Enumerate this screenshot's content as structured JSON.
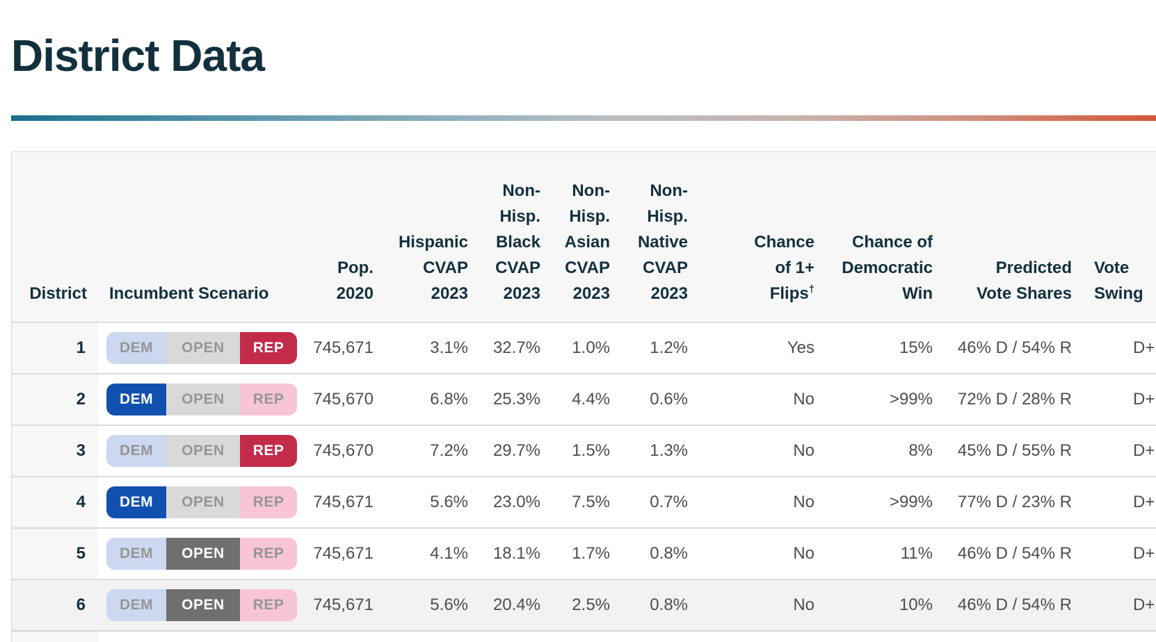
{
  "page": {
    "title": "District Data"
  },
  "colors": {
    "heading_navy": "#13303d",
    "body_text_gray": "#4d4d4d",
    "gradient_left_teal": "#1b6f8d",
    "gradient_right_red": "#d25738",
    "dem_active_blue": "#1150ae",
    "dem_inactive_lavender": "#ccd7f0",
    "open_active_gray": "#6f6f6f",
    "open_inactive_gray": "#d9d9d9",
    "rep_active_crimson": "#c32b4b",
    "rep_inactive_pink": "#f8c5d5",
    "header_background": "#f7f7f7",
    "highlight_row_background": "#f2f2f2"
  },
  "table": {
    "badge_labels": {
      "dem": "DEM",
      "open": "OPEN",
      "rep": "REP"
    },
    "columns": [
      {
        "id": "district",
        "label": "District",
        "lines": [
          "District"
        ],
        "align": "right"
      },
      {
        "id": "incumbent",
        "label": "Incumbent Scenario",
        "lines": [
          "Incumbent Scenario"
        ],
        "align": "left"
      },
      {
        "id": "pop",
        "label": "Pop. 2020",
        "lines": [
          "Pop.",
          "2020"
        ],
        "align": "right"
      },
      {
        "id": "hisp",
        "label": "Hispanic CVAP 2023",
        "lines": [
          "Hispanic",
          "CVAP",
          "2023"
        ],
        "align": "right"
      },
      {
        "id": "black",
        "label": "Non-Hisp. Black CVAP 2023",
        "lines": [
          "Non-",
          "Hisp.",
          "Black",
          "CVAP",
          "2023"
        ],
        "align": "right"
      },
      {
        "id": "asian",
        "label": "Non-Hisp. Asian CVAP 2023",
        "lines": [
          "Non-",
          "Hisp.",
          "Asian",
          "CVAP",
          "2023"
        ],
        "align": "right"
      },
      {
        "id": "native",
        "label": "Non-Hisp. Native CVAP 2023",
        "lines": [
          "Non-",
          "Hisp.",
          "Native",
          "CVAP",
          "2023"
        ],
        "align": "right"
      },
      {
        "id": "flips",
        "label": "Chance of 1+ Flips†",
        "lines": [
          "Chance",
          "of 1+",
          "Flips†"
        ],
        "align": "right"
      },
      {
        "id": "demwin",
        "label": "Chance of Democratic Win",
        "lines": [
          "Chance of",
          "Democratic",
          "Win"
        ],
        "align": "right"
      },
      {
        "id": "shares",
        "label": "Predicted Vote Shares",
        "lines": [
          "Predicted",
          "Vote Shares"
        ],
        "align": "right"
      },
      {
        "id": "swing",
        "label": "Vote Swing",
        "lines": [
          "Vote",
          "Swing"
        ],
        "align": "left"
      }
    ],
    "rows": [
      {
        "district": "1",
        "scenario_active": "rep",
        "pop": "745,671",
        "hisp": "3.1%",
        "black": "32.7%",
        "asian": "1.0%",
        "native": "1.2%",
        "flips": "Yes",
        "demwin": "15%",
        "shares": "46% D / 54% R",
        "swing": "D+",
        "highlighted": false
      },
      {
        "district": "2",
        "scenario_active": "dem",
        "pop": "745,670",
        "hisp": "6.8%",
        "black": "25.3%",
        "asian": "4.4%",
        "native": "0.6%",
        "flips": "No",
        "demwin": ">99%",
        "shares": "72% D / 28% R",
        "swing": "D+",
        "highlighted": false
      },
      {
        "district": "3",
        "scenario_active": "rep",
        "pop": "745,670",
        "hisp": "7.2%",
        "black": "29.7%",
        "asian": "1.5%",
        "native": "1.3%",
        "flips": "No",
        "demwin": "8%",
        "shares": "45% D / 55% R",
        "swing": "D+",
        "highlighted": false
      },
      {
        "district": "4",
        "scenario_active": "dem",
        "pop": "745,671",
        "hisp": "5.6%",
        "black": "23.0%",
        "asian": "7.5%",
        "native": "0.7%",
        "flips": "No",
        "demwin": ">99%",
        "shares": "77% D / 23% R",
        "swing": "D+",
        "highlighted": false
      },
      {
        "district": "5",
        "scenario_active": "open",
        "pop": "745,671",
        "hisp": "4.1%",
        "black": "18.1%",
        "asian": "1.7%",
        "native": "0.8%",
        "flips": "No",
        "demwin": "11%",
        "shares": "46% D / 54% R",
        "swing": "D+",
        "highlighted": false
      },
      {
        "district": "6",
        "scenario_active": "open",
        "pop": "745,671",
        "hisp": "5.6%",
        "black": "20.4%",
        "asian": "2.5%",
        "native": "0.8%",
        "flips": "No",
        "demwin": "10%",
        "shares": "46% D / 54% R",
        "swing": "D+",
        "highlighted": true
      }
    ]
  }
}
